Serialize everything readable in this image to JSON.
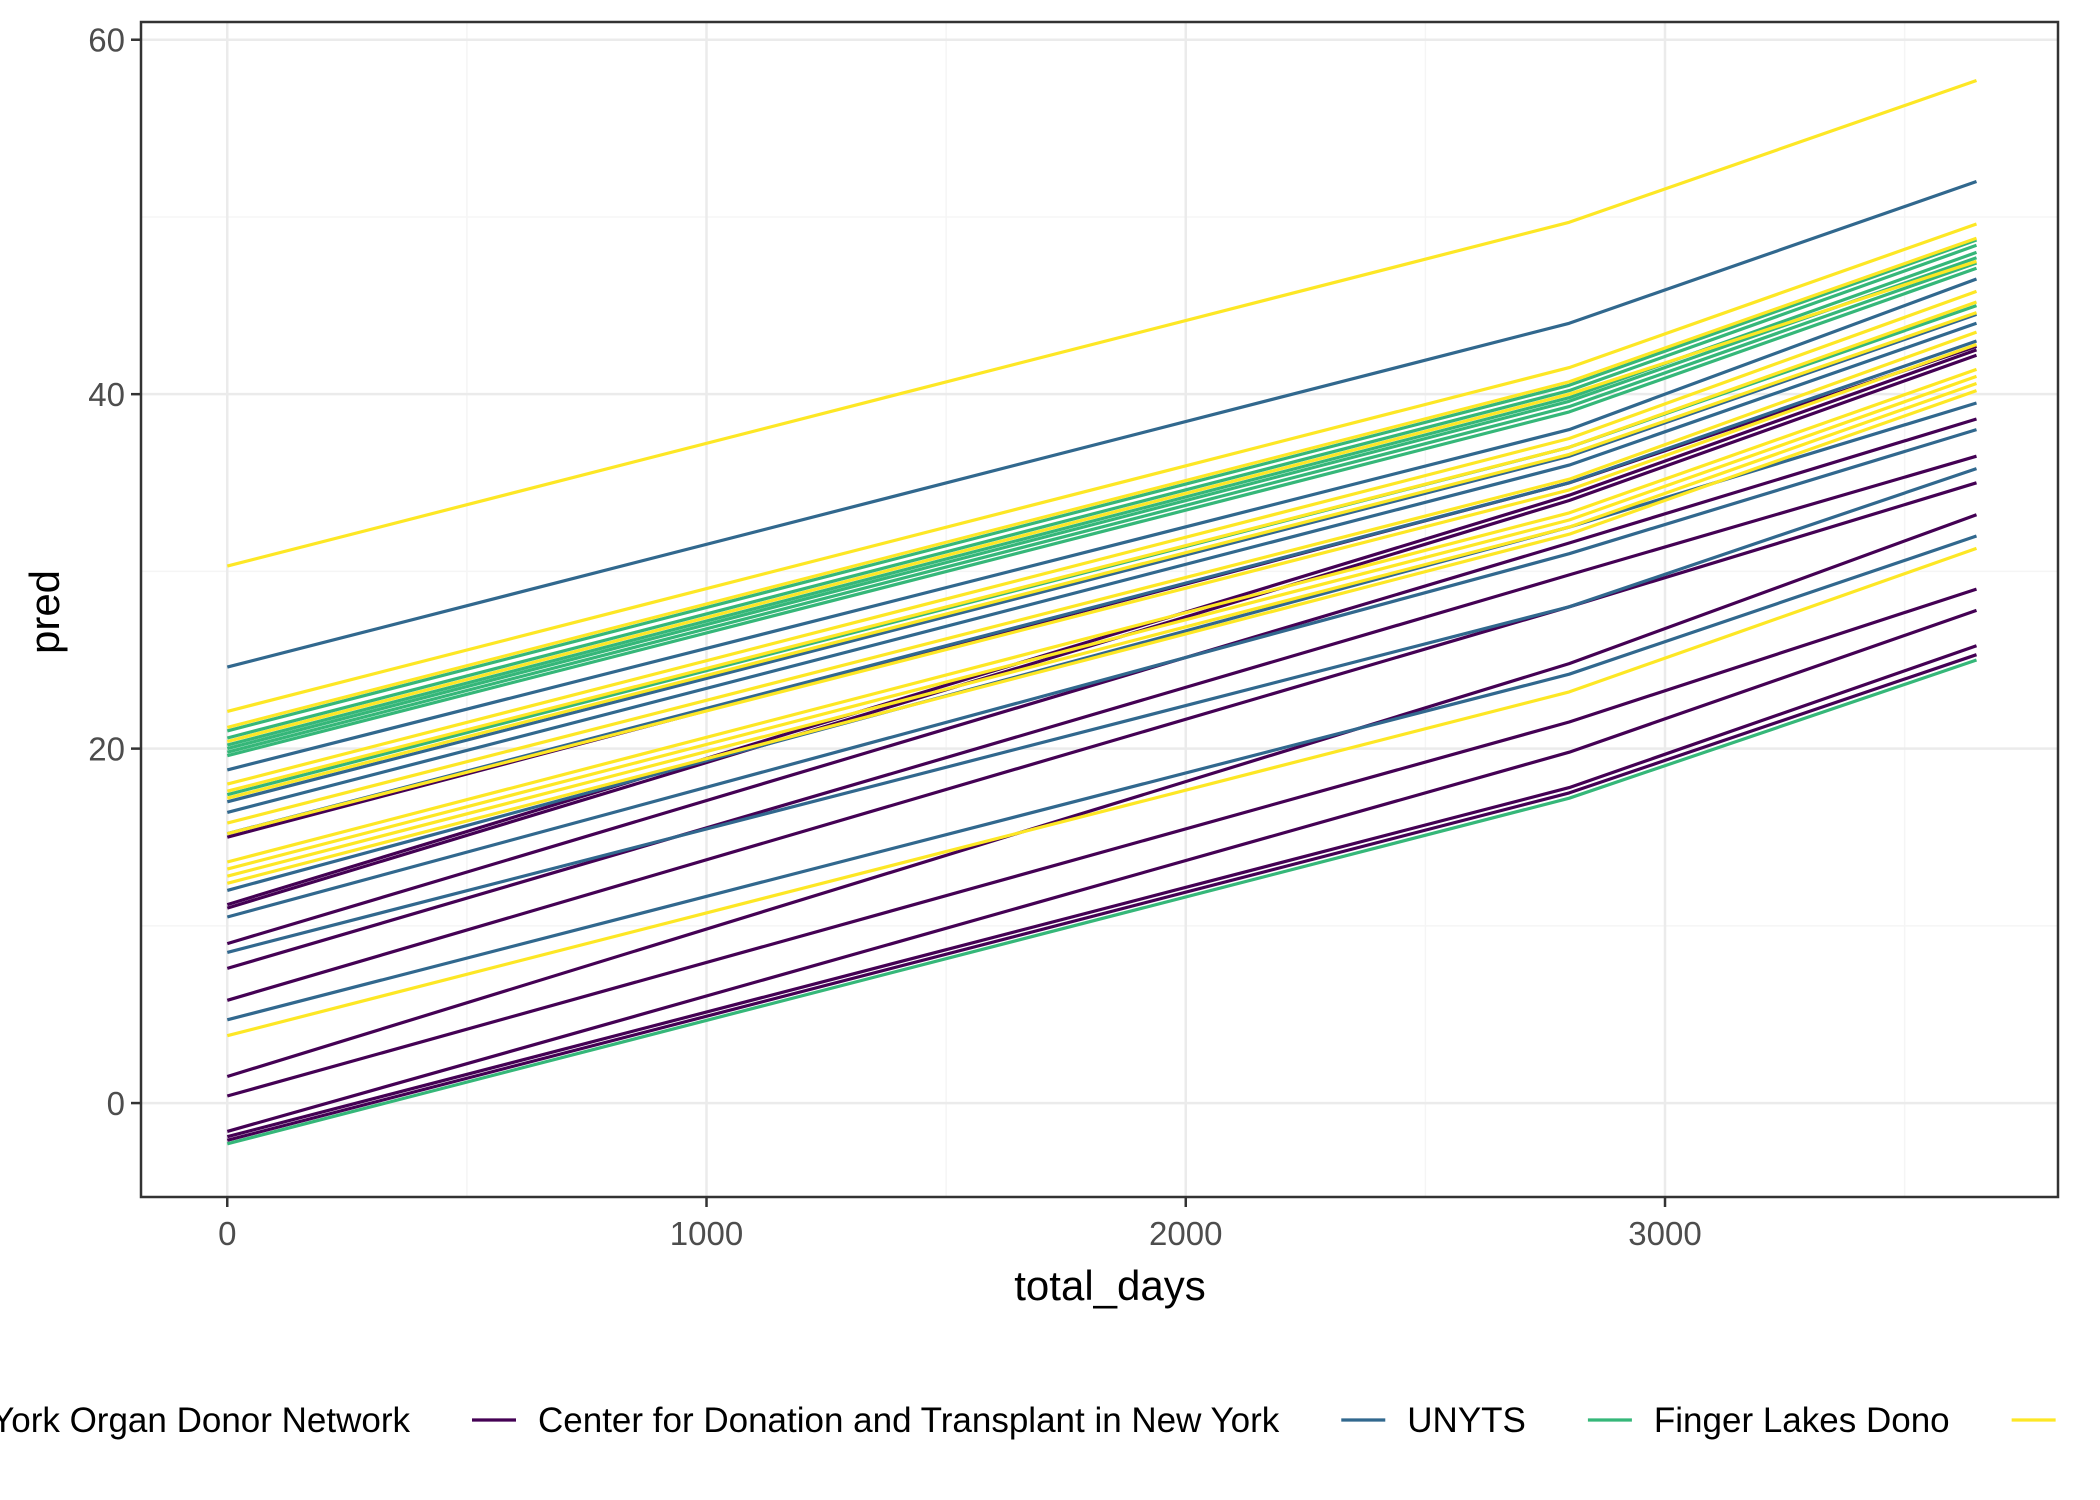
{
  "chart_data": {
    "type": "line",
    "xlabel": "total_days",
    "ylabel": "pred",
    "xlim": [
      -180,
      3820
    ],
    "ylim": [
      -5.3,
      61
    ],
    "x_ticks": [
      "0",
      "1000",
      "2000",
      "3000"
    ],
    "y_ticks": [
      "0",
      "20",
      "40",
      "60"
    ],
    "x": [
      0,
      2800,
      3650
    ],
    "grid": true,
    "legend_position": "bottom",
    "legend": [
      {
        "label": "New York Organ Donor Network",
        "color": "#440154"
      },
      {
        "label": "Center for Donation and Transplant in New York",
        "color": "#31688E"
      },
      {
        "label": "UNYTS",
        "color": "#35B779"
      },
      {
        "label": "Finger Lakes Dono",
        "color": "#FDE725"
      }
    ],
    "series": [
      {
        "group": 0,
        "values": [
          11.0,
          34.0,
          42.2
        ]
      },
      {
        "group": 0,
        "values": [
          11.2,
          34.3,
          42.5
        ]
      },
      {
        "group": 0,
        "values": [
          9.0,
          31.6,
          38.6
        ]
      },
      {
        "group": 0,
        "values": [
          7.6,
          29.8,
          36.5
        ]
      },
      {
        "group": 0,
        "values": [
          5.8,
          28.0,
          35.0
        ]
      },
      {
        "group": 0,
        "values": [
          15.0,
          35.0,
          42.7
        ]
      },
      {
        "group": 0,
        "values": [
          1.5,
          24.8,
          33.2
        ]
      },
      {
        "group": 0,
        "values": [
          0.4,
          21.5,
          29.0
        ]
      },
      {
        "group": 0,
        "values": [
          -1.6,
          19.8,
          27.8
        ]
      },
      {
        "group": 0,
        "values": [
          -1.9,
          17.8,
          25.8
        ]
      },
      {
        "group": 0,
        "values": [
          -2.1,
          17.5,
          25.3
        ]
      },
      {
        "group": 1,
        "values": [
          24.6,
          44.0,
          52.0
        ]
      },
      {
        "group": 1,
        "values": [
          18.8,
          38.0,
          46.5
        ]
      },
      {
        "group": 1,
        "values": [
          16.4,
          36.0,
          44.0
        ]
      },
      {
        "group": 1,
        "values": [
          15.2,
          35.0,
          43.0
        ]
      },
      {
        "group": 1,
        "values": [
          12.0,
          32.5,
          39.5
        ]
      },
      {
        "group": 1,
        "values": [
          10.5,
          31.0,
          38.0
        ]
      },
      {
        "group": 1,
        "values": [
          8.5,
          28.0,
          35.8
        ]
      },
      {
        "group": 1,
        "values": [
          4.7,
          24.2,
          32.0
        ]
      },
      {
        "group": 1,
        "values": [
          17.0,
          36.5,
          44.5
        ]
      },
      {
        "group": 2,
        "values": [
          20.2,
          39.8,
          48.0
        ]
      },
      {
        "group": 2,
        "values": [
          20.0,
          39.6,
          47.7
        ]
      },
      {
        "group": 2,
        "values": [
          19.8,
          39.3,
          47.4
        ]
      },
      {
        "group": 2,
        "values": [
          19.6,
          39.0,
          47.1
        ]
      },
      {
        "group": 2,
        "values": [
          20.6,
          40.2,
          48.4
        ]
      },
      {
        "group": 2,
        "values": [
          21.0,
          40.5,
          48.7
        ]
      },
      {
        "group": 2,
        "values": [
          17.4,
          37.0,
          45.0
        ]
      },
      {
        "group": 2,
        "values": [
          -2.3,
          17.2,
          25.0
        ]
      },
      {
        "group": 3,
        "values": [
          30.3,
          49.7,
          57.7
        ]
      },
      {
        "group": 3,
        "values": [
          22.1,
          41.5,
          49.6
        ]
      },
      {
        "group": 3,
        "values": [
          21.2,
          40.7,
          48.8
        ]
      },
      {
        "group": 3,
        "values": [
          20.4,
          40.0,
          47.5
        ]
      },
      {
        "group": 3,
        "values": [
          18.0,
          37.5,
          45.8
        ]
      },
      {
        "group": 3,
        "values": [
          17.6,
          37.0,
          45.2
        ]
      },
      {
        "group": 3,
        "values": [
          17.2,
          36.6,
          44.6
        ]
      },
      {
        "group": 3,
        "values": [
          15.8,
          35.2,
          43.5
        ]
      },
      {
        "group": 3,
        "values": [
          15.2,
          34.6,
          42.8
        ]
      },
      {
        "group": 3,
        "values": [
          13.6,
          33.3,
          41.4
        ]
      },
      {
        "group": 3,
        "values": [
          13.2,
          32.9,
          41.0
        ]
      },
      {
        "group": 3,
        "values": [
          12.8,
          32.5,
          40.6
        ]
      },
      {
        "group": 3,
        "values": [
          12.4,
          32.1,
          40.2
        ]
      },
      {
        "group": 3,
        "values": [
          3.8,
          23.2,
          31.3
        ]
      }
    ]
  }
}
